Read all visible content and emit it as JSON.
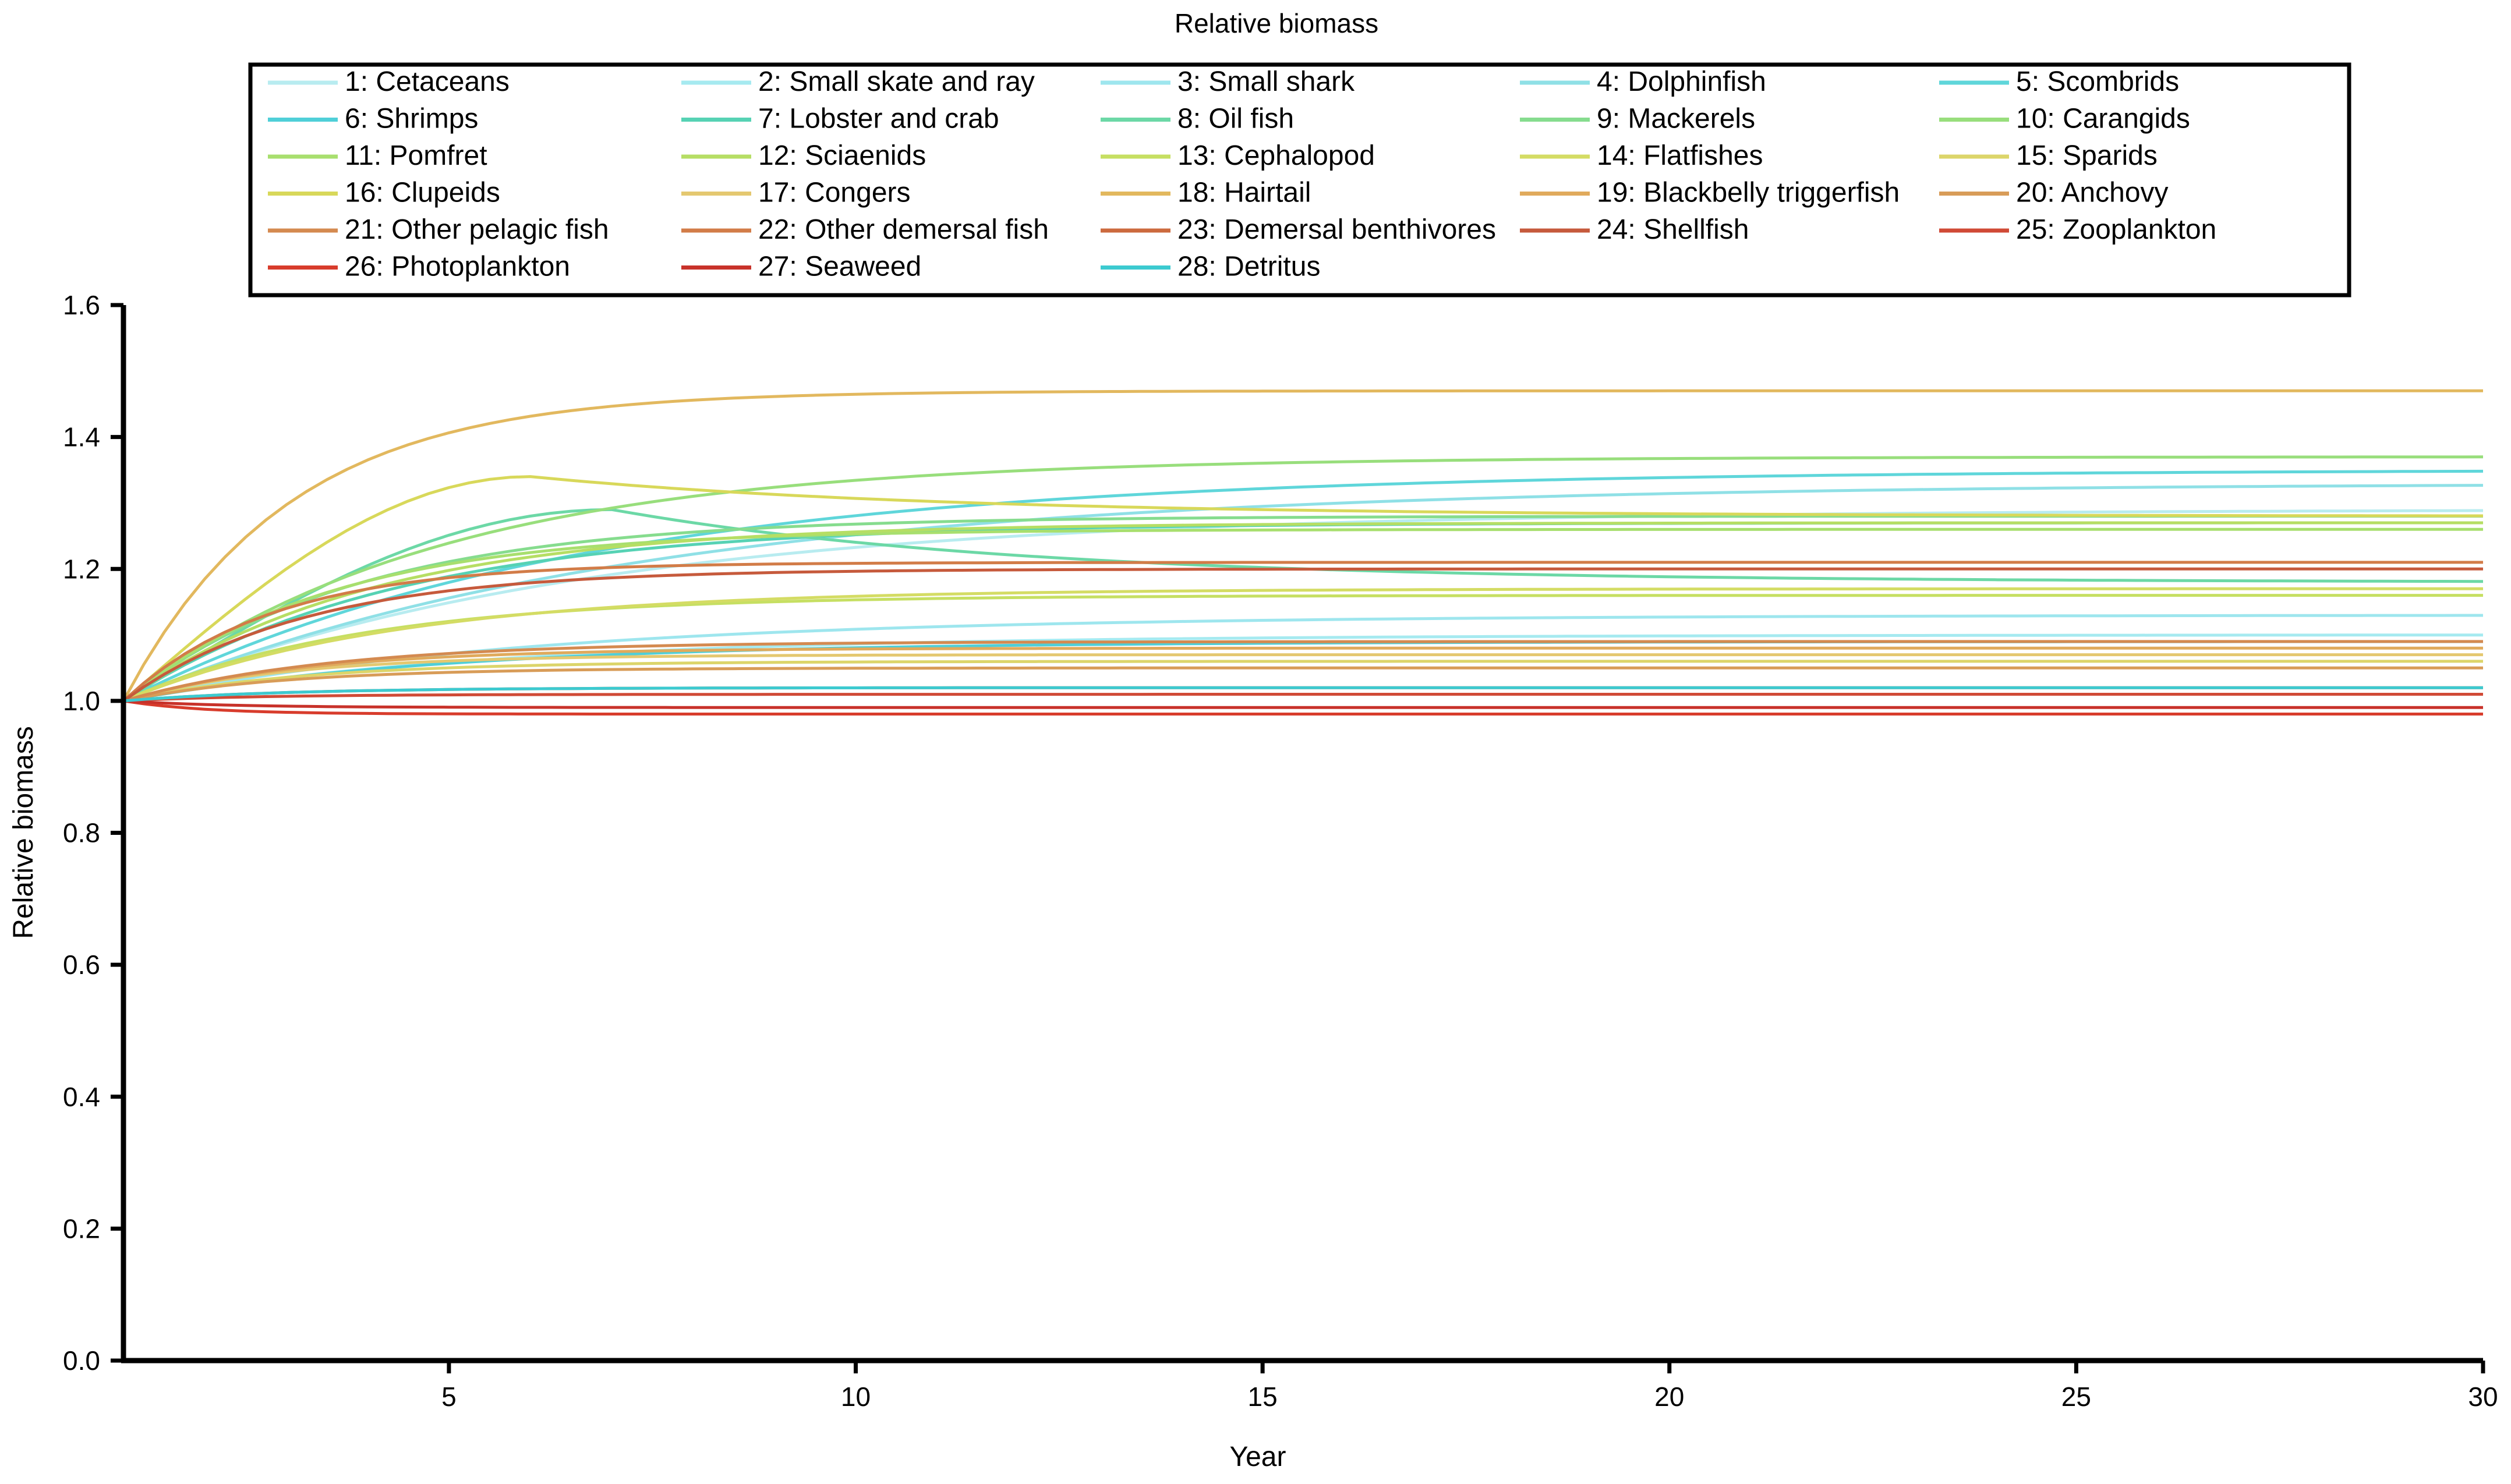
{
  "chart_data": {
    "type": "line",
    "title": "Relative biomass",
    "xlabel": "Year",
    "ylabel": "Relative biomass",
    "xlim": [
      1,
      30
    ],
    "ylim": [
      0,
      1.6
    ],
    "x_ticks": [
      5,
      10,
      15,
      20,
      25,
      30
    ],
    "y_ticks": [
      0.0,
      0.2,
      0.4,
      0.6,
      0.8,
      1.0,
      1.2,
      1.4,
      1.6
    ],
    "y_tick_labels": [
      "0.0",
      "0.2",
      "0.4",
      "0.6",
      "0.8",
      "1.0",
      "1.2",
      "1.4",
      "1.6"
    ],
    "grid": false,
    "legend_position": "top",
    "series": [
      {
        "name": "1: Cetaceans",
        "color": "#b8ecf0",
        "final": 1.29,
        "peak": null,
        "peak_year": null,
        "rate": 0.18
      },
      {
        "name": "2: Small skate and ray",
        "color": "#a6eaf0",
        "final": 1.1,
        "peak": null,
        "peak_year": null,
        "rate": 0.22
      },
      {
        "name": "3: Small shark",
        "color": "#9ee6ee",
        "final": 1.13,
        "peak": null,
        "peak_year": null,
        "rate": 0.2
      },
      {
        "name": "4: Dolphinfish",
        "color": "#8fe0e6",
        "final": 1.33,
        "peak": null,
        "peak_year": null,
        "rate": 0.16
      },
      {
        "name": "5: Scombrids",
        "color": "#5fd6da",
        "final": 1.35,
        "peak": null,
        "peak_year": null,
        "rate": 0.18
      },
      {
        "name": "6: Shrimps",
        "color": "#4fcfd8",
        "final": 1.09,
        "peak": null,
        "peak_year": null,
        "rate": 0.25
      },
      {
        "name": "7: Lobster and crab",
        "color": "#56d2b4",
        "final": 1.27,
        "peak": null,
        "peak_year": null,
        "rate": 0.3
      },
      {
        "name": "8: Oil fish",
        "color": "#6cd8a6",
        "final": 1.18,
        "peak": 1.29,
        "peak_year": 7,
        "rate": 0.42
      },
      {
        "name": "9: Mackerels",
        "color": "#86dc8e",
        "final": 1.28,
        "peak": null,
        "peak_year": null,
        "rate": 0.35
      },
      {
        "name": "10: Carangids",
        "color": "#98de7c",
        "final": 1.37,
        "peak": null,
        "peak_year": null,
        "rate": 0.26
      },
      {
        "name": "11: Pomfret",
        "color": "#a8df6e",
        "final": 1.26,
        "peak": null,
        "peak_year": null,
        "rate": 0.4
      },
      {
        "name": "12: Sciaenids",
        "color": "#b6de64",
        "final": 1.27,
        "peak": null,
        "peak_year": null,
        "rate": 0.33
      },
      {
        "name": "13: Cephalopod",
        "color": "#c6df62",
        "final": 1.16,
        "peak": null,
        "peak_year": null,
        "rate": 0.35
      },
      {
        "name": "14: Flatfishes",
        "color": "#d4dc64",
        "final": 1.17,
        "peak": null,
        "peak_year": null,
        "rate": 0.3
      },
      {
        "name": "15: Sparids",
        "color": "#dcd56a",
        "final": 1.06,
        "peak": null,
        "peak_year": null,
        "rate": 0.45
      },
      {
        "name": "16: Clupeids",
        "color": "#d8d85a",
        "final": 1.28,
        "peak": 1.34,
        "peak_year": 6,
        "rate": 0.6
      },
      {
        "name": "17: Congers",
        "color": "#e4c870",
        "final": 1.07,
        "peak": null,
        "peak_year": null,
        "rate": 0.5
      },
      {
        "name": "18: Hairtail",
        "color": "#e2b85e",
        "final": 1.47,
        "peak": null,
        "peak_year": null,
        "rate": 0.5
      },
      {
        "name": "19:  Blackbelly triggerfish",
        "color": "#e0aa5c",
        "final": 1.08,
        "peak": null,
        "peak_year": null,
        "rate": 0.45
      },
      {
        "name": "20: Anchovy",
        "color": "#d89c58",
        "final": 1.05,
        "peak": null,
        "peak_year": null,
        "rate": 0.5
      },
      {
        "name": "21: Other pelagic fish",
        "color": "#d48a50",
        "final": 1.09,
        "peak": null,
        "peak_year": null,
        "rate": 0.4
      },
      {
        "name": "22: Other demersal fish",
        "color": "#d27c48",
        "final": 1.21,
        "peak": null,
        "peak_year": null,
        "rate": 0.55
      },
      {
        "name": "23: Demersal benthivores",
        "color": "#cc6a3e",
        "final": 1.02,
        "peak": null,
        "peak_year": null,
        "rate": 0.5
      },
      {
        "name": "24: Shellfish",
        "color": "#c65a3c",
        "final": 1.2,
        "peak": null,
        "peak_year": null,
        "rate": 0.45
      },
      {
        "name": "25: Zooplankton",
        "color": "#d04a36",
        "final": 1.01,
        "peak": null,
        "peak_year": null,
        "rate": 0.6
      },
      {
        "name": "26: Photoplankton",
        "color": "#d83c2c",
        "final": 0.98,
        "peak": null,
        "peak_year": null,
        "rate": 1.0
      },
      {
        "name": "27: Seaweed",
        "color": "#c8322a",
        "final": 0.99,
        "peak": null,
        "peak_year": null,
        "rate": 0.8
      },
      {
        "name": "28: Detritus",
        "color": "#3ccad0",
        "final": 1.02,
        "peak": null,
        "peak_year": null,
        "rate": 0.5
      }
    ]
  }
}
